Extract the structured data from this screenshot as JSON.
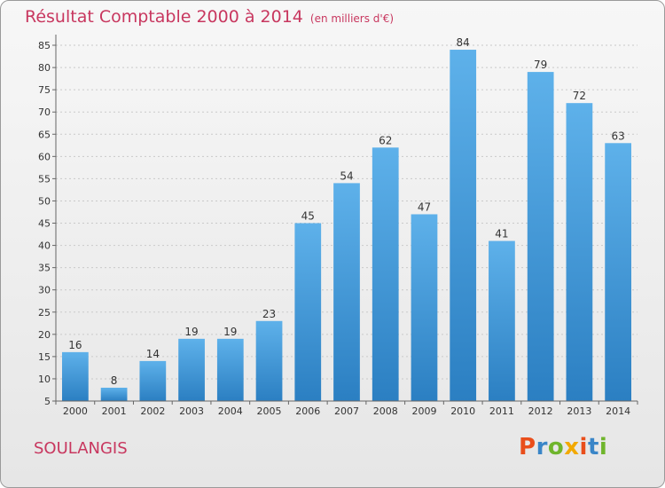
{
  "header": {
    "title": "Résultat Comptable 2000 à 2014",
    "unit": "(en milliers d'€)"
  },
  "footer": {
    "commune": "SOULANGIS",
    "logo_text": "Proxiti",
    "logo_colors": [
      "#e94e1b",
      "#3a86c8",
      "#6fb52c",
      "#f2a900",
      "#e94e1b",
      "#3a86c8",
      "#6fb52c"
    ]
  },
  "colors": {
    "bar_light": "#5eb1ea",
    "bar_dark": "#2b7fc2",
    "title": "#c8375f"
  },
  "chart_data": {
    "type": "bar",
    "categories": [
      "2000",
      "2001",
      "2002",
      "2003",
      "2004",
      "2005",
      "2006",
      "2007",
      "2008",
      "2009",
      "2010",
      "2011",
      "2012",
      "2013",
      "2014"
    ],
    "values": [
      16,
      8,
      14,
      19,
      19,
      23,
      45,
      54,
      62,
      47,
      84,
      41,
      79,
      72,
      63
    ],
    "yticks": [
      5,
      10,
      15,
      20,
      25,
      30,
      35,
      40,
      45,
      50,
      55,
      60,
      65,
      70,
      75,
      80,
      85
    ],
    "ylim": [
      5,
      87
    ],
    "grid": true,
    "title": "Résultat Comptable 2000 à 2014",
    "xlabel": "",
    "ylabel": ""
  }
}
